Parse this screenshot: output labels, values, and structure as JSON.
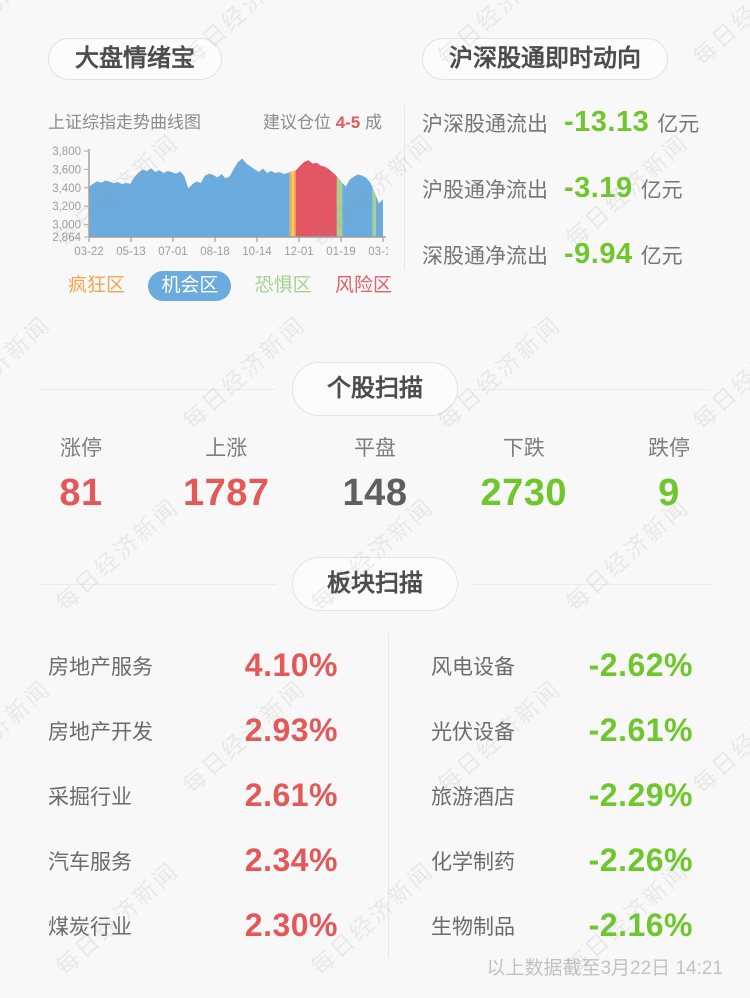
{
  "watermark": {
    "text": "每日经济新闻"
  },
  "colors": {
    "up_red": "#e4585a",
    "down_green": "#6fc62d",
    "neutral_gray": "#5f5f5f",
    "zone_blue": "#6cabde",
    "zone_red": "#e25563",
    "zone_green": "#a8d08e",
    "zone_orange": "#f2a74f",
    "zone_yellow": "#f7ce54",
    "legend_orange": "#f2a74f",
    "legend_green": "#a5d193",
    "legend_red": "#e2606b"
  },
  "sentiment": {
    "title": "大盘情绪宝",
    "chart_subtitle": "上证综指走势曲线图",
    "position_prefix": "建议仓位 ",
    "position_value": "4-5",
    "position_suffix": " 成",
    "legend": [
      {
        "label": "疯狂区",
        "style": "text",
        "color": "#f2a74f"
      },
      {
        "label": "机会区",
        "style": "pill",
        "color": "#6cabde"
      },
      {
        "label": "恐惧区",
        "style": "text",
        "color": "#a5d193"
      },
      {
        "label": "风险区",
        "style": "text",
        "color": "#e2606b"
      }
    ]
  },
  "chart_data": {
    "type": "area",
    "title": "上证综指走势曲线图",
    "xlabel": "",
    "ylabel": "",
    "ylim": [
      2864,
      3800
    ],
    "grid": false,
    "legend_position": "bottom",
    "x_tick_labels": [
      "03-22",
      "05-13",
      "07-01",
      "08-18",
      "10-14",
      "12-01",
      "01-19",
      "03-15"
    ],
    "y_ticks": [
      3800,
      3600,
      3400,
      3200,
      3000,
      2864
    ],
    "y_tick_labels": [
      "3,800",
      "3,600",
      "3,400",
      "3,200",
      "3,000",
      "2,864"
    ],
    "values": [
      3410,
      3445,
      3470,
      3455,
      3480,
      3465,
      3450,
      3462,
      3440,
      3452,
      3444,
      3520,
      3565,
      3600,
      3580,
      3612,
      3572,
      3592,
      3560,
      3582,
      3570,
      3552,
      3580,
      3528,
      3392,
      3440,
      3470,
      3452,
      3532,
      3552,
      3540,
      3512,
      3550,
      3502,
      3525,
      3610,
      3680,
      3718,
      3662,
      3632,
      3600,
      3572,
      3610,
      3562,
      3582,
      3560,
      3572,
      3550,
      3562,
      3580,
      3592,
      3640,
      3682,
      3700,
      3662,
      3672,
      3640,
      3628,
      3600,
      3560,
      3520,
      3462,
      3412,
      3490,
      3522,
      3545,
      3530,
      3508,
      3450,
      3348,
      3232,
      3272
    ],
    "zones": [
      {
        "from": 0.0,
        "to": 0.683,
        "zone": "机会区",
        "color": "#6cabde"
      },
      {
        "from": 0.683,
        "to": 0.69,
        "zone": "疯狂区",
        "color": "#f2a74f"
      },
      {
        "from": 0.69,
        "to": 0.697,
        "zone": "疯狂区",
        "color": "#f7ce54"
      },
      {
        "from": 0.697,
        "to": 0.703,
        "zone": "疯狂区",
        "color": "#f2a74f"
      },
      {
        "from": 0.703,
        "to": 0.843,
        "zone": "风险区",
        "color": "#e25563"
      },
      {
        "from": 0.843,
        "to": 0.862,
        "zone": "恐惧区",
        "color": "#a8d08e"
      },
      {
        "from": 0.862,
        "to": 0.965,
        "zone": "机会区",
        "color": "#6cabde"
      },
      {
        "from": 0.965,
        "to": 0.976,
        "zone": "恐惧区",
        "color": "#a8d08e"
      },
      {
        "from": 0.976,
        "to": 1.0,
        "zone": "机会区",
        "color": "#6cabde"
      }
    ]
  },
  "northbound": {
    "title": "沪深股通即时动向",
    "value_color": "#6fc62d",
    "rows": [
      {
        "label": "沪深股通流出",
        "value": "-13.13",
        "unit": "亿元"
      },
      {
        "label": "沪股通净流出",
        "value": "-3.19",
        "unit": "亿元"
      },
      {
        "label": "深股通净流出",
        "value": "-9.94",
        "unit": "亿元"
      }
    ]
  },
  "stock_scan": {
    "title": "个股扫描",
    "stats": [
      {
        "label": "涨停",
        "value": "81",
        "color": "#e4585a"
      },
      {
        "label": "上涨",
        "value": "1787",
        "color": "#e4585a"
      },
      {
        "label": "平盘",
        "value": "148",
        "color": "#5f5f5f"
      },
      {
        "label": "下跌",
        "value": "2730",
        "color": "#6fc62d"
      },
      {
        "label": "跌停",
        "value": "9",
        "color": "#6fc62d"
      }
    ]
  },
  "sector_scan": {
    "title": "板块扫描",
    "up_color": "#e4585a",
    "down_color": "#6fc62d",
    "left": [
      {
        "label": "房地产服务",
        "value": "4.10%"
      },
      {
        "label": "房地产开发",
        "value": "2.93%"
      },
      {
        "label": "采掘行业",
        "value": "2.61%"
      },
      {
        "label": "汽车服务",
        "value": "2.34%"
      },
      {
        "label": "煤炭行业",
        "value": "2.30%"
      }
    ],
    "right": [
      {
        "label": "风电设备",
        "value": "-2.62%"
      },
      {
        "label": "光伏设备",
        "value": "-2.61%"
      },
      {
        "label": "旅游酒店",
        "value": "-2.29%"
      },
      {
        "label": "化学制药",
        "value": "-2.26%"
      },
      {
        "label": "生物制品",
        "value": "-2.16%"
      }
    ]
  },
  "footer": {
    "text": "以上数据截至3月22日 14:21"
  }
}
